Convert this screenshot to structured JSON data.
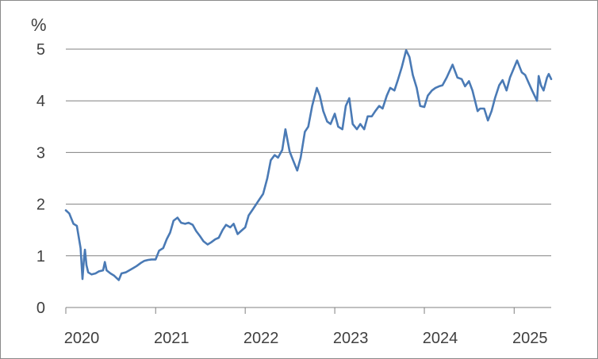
{
  "chart_data": {
    "type": "line",
    "title": "",
    "xlabel": "",
    "ylabel": "%",
    "ylim": [
      0,
      5
    ],
    "xlim": [
      "2020-01-01",
      "2025-06-01"
    ],
    "yticks": [
      "0",
      "1",
      "2",
      "3",
      "4",
      "5"
    ],
    "xticks": [
      "2020",
      "2021",
      "2022",
      "2023",
      "2024",
      "2025"
    ],
    "grid": "horizontal",
    "legend": "none",
    "line_color": "#4a7ab5",
    "series": [
      {
        "x": [
          "2020-01-01",
          "2020-01-15",
          "2020-02-01",
          "2020-02-15",
          "2020-03-01",
          "2020-03-09",
          "2020-03-15",
          "2020-03-19",
          "2020-03-25",
          "2020-04-01",
          "2020-04-15",
          "2020-05-01",
          "2020-05-15",
          "2020-06-01",
          "2020-06-08",
          "2020-06-15",
          "2020-07-01",
          "2020-07-15",
          "2020-08-04",
          "2020-08-15",
          "2020-09-01",
          "2020-10-01",
          "2020-10-15",
          "2020-11-01",
          "2020-11-15",
          "2020-12-01",
          "2020-12-15",
          "2021-01-01",
          "2021-01-15",
          "2021-02-01",
          "2021-02-15",
          "2021-03-01",
          "2021-03-15",
          "2021-03-31",
          "2021-04-15",
          "2021-05-01",
          "2021-05-15",
          "2021-06-01",
          "2021-06-15",
          "2021-07-01",
          "2021-07-15",
          "2021-08-01",
          "2021-08-15",
          "2021-09-01",
          "2021-09-15",
          "2021-10-01",
          "2021-10-15",
          "2021-11-01",
          "2021-11-15",
          "2021-12-01",
          "2021-12-15",
          "2022-01-01",
          "2022-01-15",
          "2022-02-01",
          "2022-02-15",
          "2022-03-01",
          "2022-03-15",
          "2022-04-01",
          "2022-04-15",
          "2022-05-01",
          "2022-05-15",
          "2022-06-01",
          "2022-06-14",
          "2022-07-01",
          "2022-07-15",
          "2022-08-01",
          "2022-08-15",
          "2022-09-01",
          "2022-09-15",
          "2022-10-01",
          "2022-10-20",
          "2022-11-01",
          "2022-11-15",
          "2022-12-01",
          "2022-12-15",
          "2023-01-01",
          "2023-01-15",
          "2023-02-01",
          "2023-02-15",
          "2023-03-01",
          "2023-03-15",
          "2023-04-01",
          "2023-04-15",
          "2023-05-01",
          "2023-05-15",
          "2023-06-01",
          "2023-06-15",
          "2023-07-01",
          "2023-07-15",
          "2023-08-01",
          "2023-08-15",
          "2023-09-01",
          "2023-09-15",
          "2023-10-01",
          "2023-10-19",
          "2023-11-01",
          "2023-11-15",
          "2023-12-01",
          "2023-12-15",
          "2024-01-01",
          "2024-01-15",
          "2024-02-01",
          "2024-02-15",
          "2024-03-01",
          "2024-03-15",
          "2024-04-01",
          "2024-04-25",
          "2024-05-15",
          "2024-06-01",
          "2024-06-15",
          "2024-07-01",
          "2024-07-15",
          "2024-08-05",
          "2024-08-15",
          "2024-09-01",
          "2024-09-16",
          "2024-10-01",
          "2024-10-15",
          "2024-11-01",
          "2024-11-15",
          "2024-12-01",
          "2024-12-15",
          "2025-01-13",
          "2025-02-01",
          "2025-02-15",
          "2025-03-01",
          "2025-03-15",
          "2025-04-04",
          "2025-04-11",
          "2025-04-20",
          "2025-05-01",
          "2025-05-15",
          "2025-05-22",
          "2025-06-01"
        ],
        "values": [
          1.88,
          1.82,
          1.62,
          1.58,
          1.15,
          0.55,
          0.95,
          1.12,
          0.82,
          0.68,
          0.64,
          0.66,
          0.7,
          0.72,
          0.88,
          0.72,
          0.66,
          0.62,
          0.53,
          0.66,
          0.68,
          0.76,
          0.8,
          0.86,
          0.9,
          0.92,
          0.93,
          0.93,
          1.1,
          1.15,
          1.32,
          1.45,
          1.68,
          1.74,
          1.64,
          1.62,
          1.64,
          1.6,
          1.48,
          1.38,
          1.28,
          1.22,
          1.26,
          1.32,
          1.35,
          1.5,
          1.6,
          1.55,
          1.62,
          1.42,
          1.48,
          1.55,
          1.78,
          1.9,
          2.0,
          2.1,
          2.2,
          2.5,
          2.85,
          2.95,
          2.9,
          3.05,
          3.45,
          3.02,
          2.85,
          2.65,
          2.9,
          3.4,
          3.5,
          3.9,
          4.25,
          4.1,
          3.8,
          3.6,
          3.55,
          3.75,
          3.5,
          3.45,
          3.9,
          4.05,
          3.55,
          3.45,
          3.55,
          3.45,
          3.7,
          3.7,
          3.8,
          3.9,
          3.85,
          4.1,
          4.25,
          4.2,
          4.4,
          4.65,
          4.98,
          4.85,
          4.5,
          4.25,
          3.9,
          3.88,
          4.1,
          4.2,
          4.25,
          4.28,
          4.3,
          4.45,
          4.7,
          4.45,
          4.42,
          4.28,
          4.38,
          4.2,
          3.8,
          3.85,
          3.85,
          3.62,
          3.8,
          4.05,
          4.3,
          4.4,
          4.2,
          4.45,
          4.78,
          4.55,
          4.5,
          4.35,
          4.2,
          4.0,
          4.48,
          4.3,
          4.2,
          4.45,
          4.52,
          4.42
        ]
      }
    ]
  }
}
